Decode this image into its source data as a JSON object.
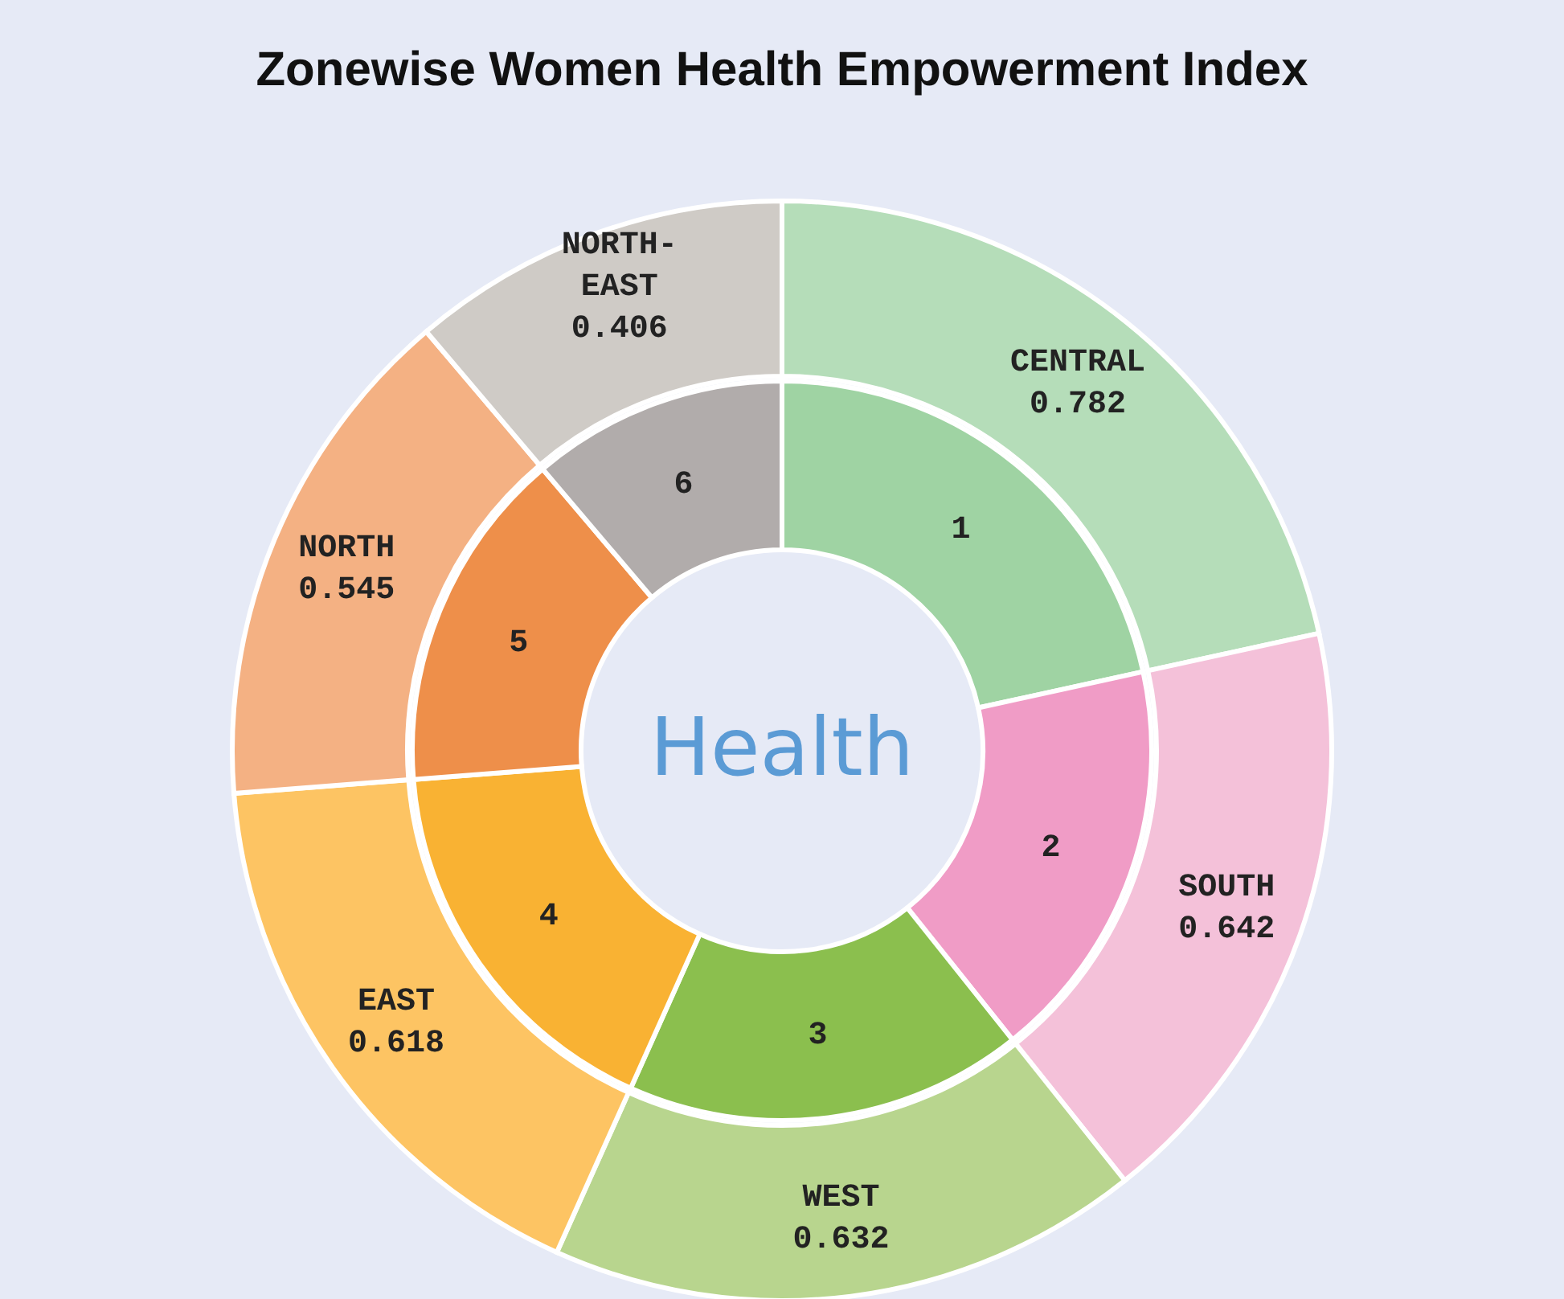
{
  "chart_data": {
    "type": "donut",
    "title": "Zonewise Women Health Empowerment Index",
    "categories": [
      "CENTRAL",
      "SOUTH",
      "WEST",
      "EAST",
      "NORTH",
      "NORTH-EAST"
    ],
    "series": [
      {
        "values": [
          21.57,
          17.71,
          17.43,
          17.05,
          15.03,
          11.21
        ],
        "colors": [
          "#9fd3a3",
          "#f09cc6",
          "#8bbf4e",
          "#f9b233",
          "#ee8f4a",
          "#b1acab"
        ]
      },
      {
        "values": [
          0.782,
          0.642,
          0.632,
          0.618,
          0.545,
          0.406
        ],
        "colors": [
          "#b5ddb9",
          "#f4c1d9",
          "#b8d58e",
          "#fdc463",
          "#f4b183",
          "#cfcbc6"
        ],
        "value_labels": [
          "0.782",
          "0.642",
          "0.632",
          "0.618",
          "0.545",
          "0.406"
        ]
      }
    ],
    "annotations": [
      "Health",
      {
        "text": "1",
        "x": "CENTRAL"
      },
      {
        "text": "2",
        "x": "SOUTH"
      },
      {
        "text": "3",
        "x": "WEST"
      },
      {
        "text": "4",
        "x": "EAST"
      },
      {
        "text": "5",
        "x": "NORTH"
      },
      {
        "text": "6",
        "x": "NORTH-EAST"
      }
    ]
  }
}
